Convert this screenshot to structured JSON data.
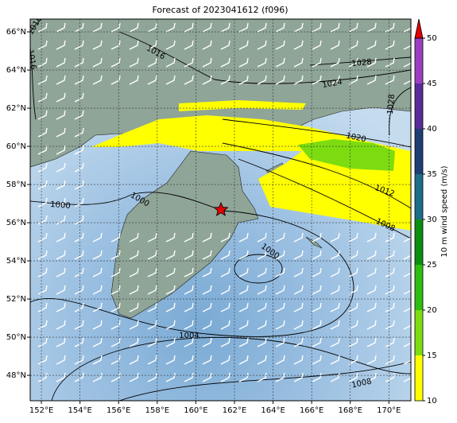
{
  "chart_data": {
    "type": "map",
    "title": "Forecast of 2023041612 (f096)",
    "xlim": [
      151.42,
      171.14
    ],
    "ylim": [
      46.67,
      66.67
    ],
    "xticks": [
      {
        "value": 152,
        "label": "152°E"
      },
      {
        "value": 154,
        "label": "154°E"
      },
      {
        "value": 156,
        "label": "156°E"
      },
      {
        "value": 158,
        "label": "158°E"
      },
      {
        "value": 160,
        "label": "160°E"
      },
      {
        "value": 162,
        "label": "162°E"
      },
      {
        "value": 164,
        "label": "164°E"
      },
      {
        "value": 166,
        "label": "166°E"
      },
      {
        "value": 168,
        "label": "168°E"
      },
      {
        "value": 170,
        "label": "170°E"
      }
    ],
    "yticks": [
      {
        "value": 48,
        "label": "48°N"
      },
      {
        "value": 50,
        "label": "50°N"
      },
      {
        "value": 52,
        "label": "52°N"
      },
      {
        "value": 54,
        "label": "54°N"
      },
      {
        "value": 56,
        "label": "56°N"
      },
      {
        "value": 58,
        "label": "58°N"
      },
      {
        "value": 60,
        "label": "60°N"
      },
      {
        "value": 62,
        "label": "62°N"
      },
      {
        "value": 64,
        "label": "64°N"
      },
      {
        "value": 66,
        "label": "66°N"
      }
    ],
    "grid": true,
    "contour_labels": [
      1016,
      1016,
      1016,
      1028,
      1024,
      1028,
      1020,
      1012,
      1008,
      1000,
      1000,
      1000,
      1004,
      1008
    ],
    "colorbar": {
      "label": "10 m wind speed (m/s)",
      "lim": [
        10,
        50
      ],
      "ticks": [
        10,
        15,
        20,
        25,
        30,
        35,
        40,
        45,
        50
      ],
      "colors": [
        "#ffff00",
        "#7cdc10",
        "#2ebd10",
        "#0a8f10",
        "#1d6e88",
        "#1e3d74",
        "#5a2a9a",
        "#9b3fc0"
      ],
      "extend_color": "#e00000"
    }
  }
}
